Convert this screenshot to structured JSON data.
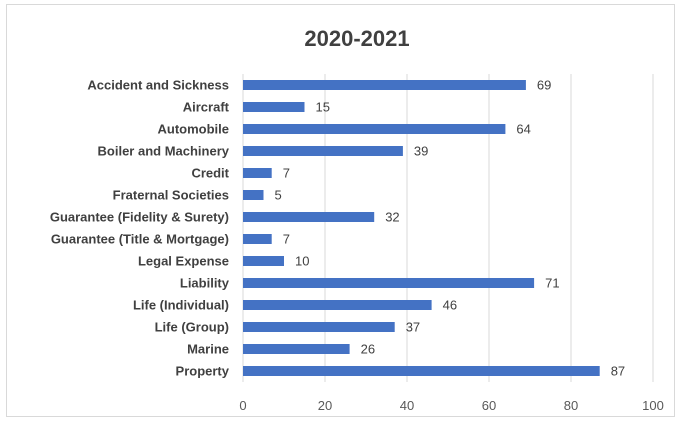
{
  "chart_data": {
    "type": "bar",
    "orientation": "horizontal",
    "title": "2020-2021",
    "xlabel": "",
    "ylabel": "",
    "xlim": [
      0,
      100
    ],
    "x_ticks": [
      "0",
      "20",
      "40",
      "60",
      "80",
      "100"
    ],
    "grid": true,
    "legend": "none",
    "bar_color": "#4472c4",
    "categories": [
      "Accident and Sickness",
      "Aircraft",
      "Automobile",
      "Boiler and Machinery",
      "Credit",
      "Fraternal Societies",
      "Guarantee (Fidelity & Surety)",
      "Guarantee (Title & Mortgage)",
      "Legal Expense",
      "Liability",
      "Life (Individual)",
      "Life (Group)",
      "Marine",
      "Property"
    ],
    "values": [
      69,
      15,
      64,
      39,
      7,
      5,
      32,
      7,
      10,
      71,
      46,
      37,
      26,
      87
    ]
  }
}
